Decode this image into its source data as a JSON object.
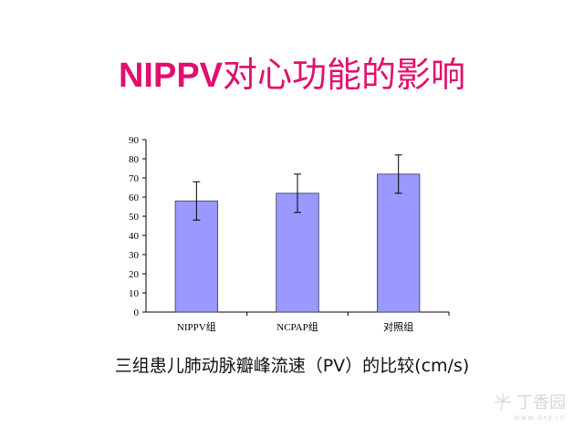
{
  "title": {
    "latin": "NIPPV",
    "cjk": "对心功能的影响"
  },
  "caption": "三组患儿肺动脉瓣峰流速（PV）的比较(cm/s)",
  "watermark": {
    "brand": "丁香园",
    "url": "www.dxy.cn"
  },
  "colors": {
    "title": "#e0106e",
    "bar_fill": "#9999ff",
    "bar_stroke": "#333366"
  },
  "chart_data": {
    "type": "bar",
    "title": "",
    "xlabel": "",
    "ylabel": "",
    "categories": [
      "NIPPV组",
      "NCPAP组",
      "对照组"
    ],
    "values": [
      58,
      62,
      72
    ],
    "error": [
      10,
      10,
      10
    ],
    "ylim": [
      0,
      90
    ],
    "yticks": [
      0,
      10,
      20,
      30,
      40,
      50,
      60,
      70,
      80,
      90
    ],
    "grid": false,
    "legend": "none"
  }
}
